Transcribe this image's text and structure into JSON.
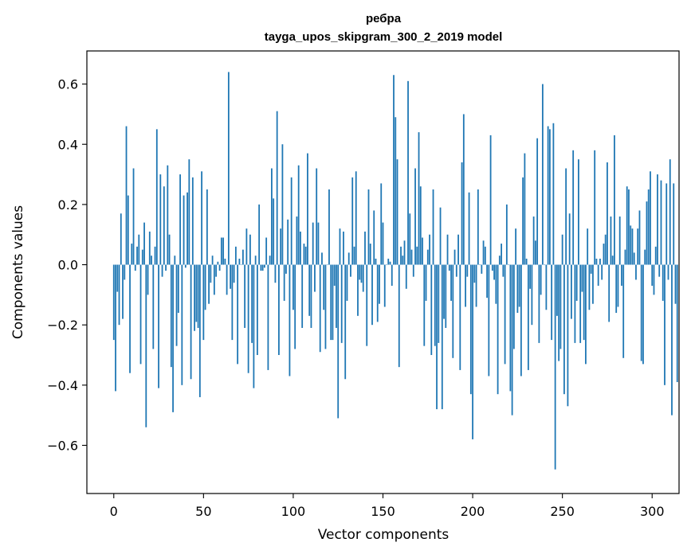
{
  "chart_data": {
    "type": "bar",
    "title": "ребра",
    "subtitle": "tayga_upos_skipgram_300_2_2019 model",
    "xlabel": "Vector components",
    "ylabel": "Components values",
    "xlim": [
      -15,
      315
    ],
    "ylim": [
      -0.76,
      0.71
    ],
    "xticks": [
      0,
      50,
      100,
      150,
      200,
      250,
      300
    ],
    "xtick_labels": [
      "0",
      "50",
      "100",
      "150",
      "200",
      "250",
      "300"
    ],
    "yticks": [
      -0.6,
      -0.4,
      -0.2,
      0.0,
      0.2,
      0.4,
      0.6
    ],
    "ytick_labels": [
      "−0.6",
      "−0.4",
      "−0.2",
      "0.0",
      "0.2",
      "0.4",
      "0.6"
    ],
    "bar_color": "#1f77b4",
    "grid": false,
    "values": [
      -0.25,
      -0.42,
      -0.09,
      -0.2,
      0.17,
      -0.18,
      -0.05,
      0.46,
      0.23,
      -0.36,
      0.07,
      0.32,
      -0.02,
      0.06,
      0.1,
      -0.33,
      0.05,
      0.14,
      -0.54,
      -0.1,
      0.11,
      0.03,
      -0.28,
      0.06,
      0.45,
      -0.41,
      0.3,
      -0.04,
      0.26,
      -0.02,
      0.33,
      0.1,
      -0.34,
      -0.49,
      0.03,
      -0.27,
      -0.16,
      0.3,
      -0.4,
      0.23,
      -0.01,
      0.24,
      0.35,
      -0.38,
      0.29,
      -0.22,
      -0.19,
      -0.21,
      -0.44,
      0.31,
      -0.25,
      -0.15,
      0.25,
      -0.13,
      -0.06,
      0.03,
      -0.1,
      -0.04,
      0.01,
      -0.02,
      0.09,
      0.09,
      0.02,
      -0.1,
      0.64,
      -0.08,
      -0.25,
      -0.06,
      0.06,
      -0.33,
      0.02,
      0.0,
      0.05,
      -0.21,
      0.12,
      -0.36,
      0.1,
      -0.26,
      -0.41,
      0.03,
      -0.3,
      0.2,
      -0.02,
      -0.02,
      -0.01,
      0.09,
      -0.35,
      0.03,
      0.32,
      0.22,
      -0.06,
      0.51,
      -0.3,
      0.12,
      0.4,
      -0.12,
      -0.03,
      0.15,
      -0.37,
      0.29,
      -0.15,
      -0.28,
      0.16,
      0.33,
      0.11,
      -0.21,
      0.07,
      0.06,
      0.37,
      -0.17,
      -0.21,
      0.14,
      -0.09,
      0.32,
      0.14,
      -0.29,
      0.04,
      -0.15,
      -0.28,
      0.0,
      0.25,
      -0.25,
      -0.25,
      -0.07,
      -0.21,
      -0.51,
      0.12,
      -0.26,
      0.11,
      -0.38,
      -0.12,
      0.04,
      -0.04,
      0.29,
      0.06,
      0.31,
      -0.17,
      -0.05,
      -0.06,
      -0.09,
      0.11,
      -0.27,
      0.25,
      0.07,
      -0.2,
      0.18,
      0.02,
      -0.19,
      -0.13,
      0.27,
      0.14,
      -0.14,
      0.0,
      0.02,
      0.01,
      -0.07,
      0.63,
      0.49,
      0.35,
      -0.34,
      0.06,
      0.03,
      0.08,
      -0.08,
      0.61,
      0.17,
      0.05,
      -0.04,
      0.32,
      0.06,
      0.44,
      0.26,
      0.09,
      -0.27,
      -0.12,
      0.05,
      0.1,
      -0.3,
      0.25,
      -0.27,
      -0.48,
      -0.26,
      0.19,
      -0.48,
      -0.18,
      -0.21,
      0.1,
      -0.02,
      -0.12,
      -0.31,
      0.05,
      -0.04,
      0.1,
      -0.35,
      0.34,
      0.5,
      -0.14,
      -0.04,
      0.24,
      -0.43,
      -0.58,
      -0.06,
      -0.14,
      0.25,
      0.0,
      -0.03,
      0.08,
      0.06,
      -0.11,
      -0.37,
      0.43,
      -0.02,
      -0.05,
      -0.13,
      -0.43,
      0.03,
      0.07,
      -0.04,
      -0.33,
      0.2,
      0.0,
      -0.42,
      -0.5,
      -0.28,
      0.12,
      -0.16,
      -0.14,
      -0.37,
      0.29,
      0.37,
      0.02,
      -0.35,
      -0.08,
      -0.2,
      0.16,
      0.08,
      0.42,
      -0.26,
      -0.1,
      0.6,
      0.0,
      -0.15,
      0.46,
      0.45,
      -0.25,
      0.47,
      -0.68,
      -0.17,
      -0.32,
      -0.28,
      0.1,
      -0.43,
      0.32,
      -0.47,
      0.17,
      -0.18,
      0.38,
      -0.26,
      -0.12,
      0.35,
      -0.26,
      -0.09,
      -0.25,
      -0.33,
      0.12,
      -0.15,
      -0.03,
      -0.13,
      0.38,
      0.02,
      -0.07,
      0.02,
      -0.05,
      0.07,
      0.1,
      0.34,
      -0.19,
      0.16,
      0.03,
      0.43,
      -0.16,
      -0.14,
      0.16,
      -0.07,
      -0.31,
      0.05,
      0.26,
      0.25,
      0.13,
      0.12,
      0.04,
      -0.05,
      0.12,
      0.18,
      -0.32,
      -0.33,
      0.05,
      0.21,
      0.25,
      0.31,
      -0.07,
      -0.1,
      0.06,
      0.3,
      -0.04,
      0.28,
      -0.12,
      -0.4,
      0.27,
      -0.05,
      0.35,
      -0.5,
      0.27,
      -0.13,
      -0.39
    ]
  }
}
